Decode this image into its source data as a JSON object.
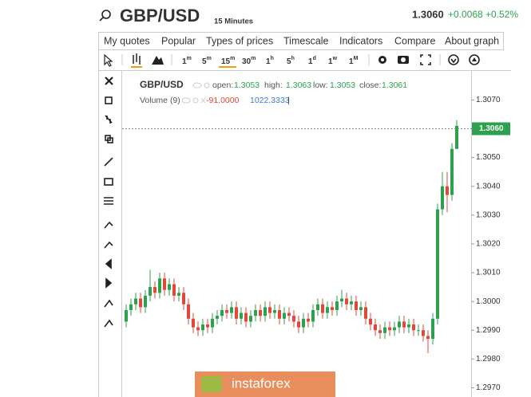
{
  "header": {
    "title": "GBP/USD",
    "timeframe": "15 Minutes",
    "price": "1.3060",
    "change": "+0.0068",
    "change_pct": "+0.52%"
  },
  "menu": [
    "My quotes",
    "Popular",
    "Types of prices",
    "Timescale",
    "Indicators",
    "Compare",
    "About graph"
  ],
  "timeframes": [
    {
      "num": "1",
      "unit": "m"
    },
    {
      "num": "5",
      "unit": "m"
    },
    {
      "num": "15",
      "unit": "m"
    },
    {
      "num": "30",
      "unit": "m"
    },
    {
      "num": "1",
      "unit": "h"
    },
    {
      "num": "5",
      "unit": "h"
    },
    {
      "num": "1",
      "unit": "d"
    },
    {
      "num": "1",
      "unit": "w"
    },
    {
      "num": "1",
      "unit": "M"
    }
  ],
  "watermark": "instaforex",
  "chart_data": {
    "type": "candlestick",
    "symbol": "GBP/USD",
    "legend_fields": [
      {
        "label": "open:",
        "value": "1.3053"
      },
      {
        "label": "high:",
        "value": "1.3063"
      },
      {
        "label": "low:",
        "value": "1.3053"
      },
      {
        "label": "close:",
        "value": "1.3061"
      }
    ],
    "volume": {
      "label": "Volume (9)",
      "value_1": "-91.0000",
      "value_2": "1022.3333",
      "separator": "|"
    },
    "up_color": "#2ca24f",
    "down_color": "#e0483a",
    "last_price": {
      "value": 1.306,
      "label": "1.3060"
    },
    "ylim": [
      1.29668,
      1.30798
    ],
    "yticks": [
      {
        "value": 1.297,
        "label": "1.2970"
      },
      {
        "value": 1.298,
        "label": "1.2980"
      },
      {
        "value": 1.299,
        "label": "1.2990"
      },
      {
        "value": 1.3,
        "label": "1.3000"
      },
      {
        "value": 1.301,
        "label": "1.3010"
      },
      {
        "value": 1.302,
        "label": "1.3020"
      },
      {
        "value": 1.303,
        "label": "1.3030"
      },
      {
        "value": 1.304,
        "label": "1.3040"
      },
      {
        "value": 1.305,
        "label": "1.3050"
      },
      {
        "value": 1.306,
        "label": "1.3060"
      },
      {
        "value": 1.307,
        "label": "1.3070"
      }
    ],
    "open": [
      1.2993,
      1.2997,
      1.2999,
      1.3001,
      1.2998,
      1.3002,
      1.3005,
      1.3003,
      1.3008,
      1.3004,
      1.3006,
      1.3002,
      1.3003,
      1.2999,
      1.2994,
      1.2991,
      1.299,
      1.2992,
      1.2991,
      1.2994,
      1.2995,
      1.2997,
      1.2996,
      1.2998,
      1.2994,
      1.2996,
      1.2993,
      1.2995,
      1.2997,
      1.2995,
      1.2998,
      1.2996,
      1.2997,
      1.2994,
      1.2996,
      1.2995,
      1.2993,
      1.2991,
      1.2994,
      1.2993,
      1.2997,
      1.2999,
      1.2996,
      1.2998,
      1.2997,
      1.3,
      1.3001,
      1.2999,
      1.3,
      1.2997,
      1.2998,
      1.2994,
      1.2992,
      1.299,
      1.2989,
      1.2991,
      1.299,
      1.2991,
      1.2993,
      1.2991,
      1.2992,
      1.299,
      1.299,
      1.2988,
      1.2987,
      1.2994,
      1.3032,
      1.304,
      1.3037,
      1.3053
    ],
    "high": [
      1.2999,
      1.3001,
      1.3003,
      1.3003,
      1.3004,
      1.3011,
      1.3007,
      1.301,
      1.301,
      1.3008,
      1.3008,
      1.3005,
      1.3005,
      1.3001,
      1.2996,
      1.2993,
      1.2994,
      1.2994,
      1.2996,
      1.2997,
      1.2999,
      1.2999,
      1.3,
      1.3,
      1.2998,
      1.2998,
      1.2997,
      1.2999,
      1.2999,
      1.3,
      1.3,
      1.2999,
      1.2999,
      1.2998,
      1.2998,
      1.2997,
      1.2995,
      1.2996,
      1.2996,
      1.2999,
      1.3001,
      1.3001,
      1.3,
      1.3,
      1.3002,
      1.3004,
      1.3003,
      1.3002,
      1.3002,
      1.3,
      1.3,
      1.2996,
      1.2994,
      1.2992,
      1.2993,
      1.2993,
      1.2993,
      1.2995,
      1.2995,
      1.2994,
      1.2994,
      1.2992,
      1.2992,
      1.299,
      1.2996,
      1.3034,
      1.3045,
      1.3045,
      1.3055,
      1.3063
    ],
    "low": [
      1.2991,
      1.2995,
      1.2997,
      1.2996,
      1.2996,
      1.3,
      1.3001,
      1.3001,
      1.3002,
      1.3002,
      1.3,
      1.3,
      1.2997,
      1.2992,
      1.2989,
      1.2988,
      1.2988,
      1.2989,
      1.2989,
      1.2992,
      1.2993,
      1.2994,
      1.2994,
      1.2992,
      1.2992,
      1.2991,
      1.2991,
      1.2993,
      1.2993,
      1.2993,
      1.2994,
      1.2994,
      1.2992,
      1.2992,
      1.2993,
      1.2991,
      1.2989,
      1.2989,
      1.2991,
      1.2991,
      1.2995,
      1.2994,
      1.2994,
      1.2995,
      1.2995,
      1.2998,
      1.2997,
      1.2997,
      1.2995,
      1.2995,
      1.2992,
      1.299,
      1.2988,
      1.2987,
      1.2987,
      1.2988,
      1.2988,
      1.2989,
      1.2989,
      1.2989,
      1.2988,
      1.2988,
      1.2986,
      1.2982,
      1.2985,
      1.2992,
      1.303,
      1.3031,
      1.3035,
      1.3053
    ],
    "close": [
      1.2997,
      1.2999,
      1.3001,
      1.2998,
      1.3002,
      1.3005,
      1.3003,
      1.3008,
      1.3004,
      1.3006,
      1.3002,
      1.3003,
      1.2999,
      1.2994,
      1.2991,
      1.299,
      1.2992,
      1.2991,
      1.2994,
      1.2995,
      1.2997,
      1.2996,
      1.2998,
      1.2994,
      1.2996,
      1.2993,
      1.2995,
      1.2997,
      1.2995,
      1.2998,
      1.2996,
      1.2997,
      1.2994,
      1.2996,
      1.2995,
      1.2993,
      1.2991,
      1.2994,
      1.2993,
      1.2997,
      1.2999,
      1.2996,
      1.2998,
      1.2997,
      1.3,
      1.3001,
      1.2999,
      1.3,
      1.2997,
      1.2998,
      1.2994,
      1.2992,
      1.299,
      1.2989,
      1.2991,
      1.299,
      1.2991,
      1.2993,
      1.2991,
      1.2992,
      1.299,
      1.299,
      1.2988,
      1.2987,
      1.2994,
      1.3032,
      1.304,
      1.3037,
      1.3053,
      1.3061
    ]
  }
}
